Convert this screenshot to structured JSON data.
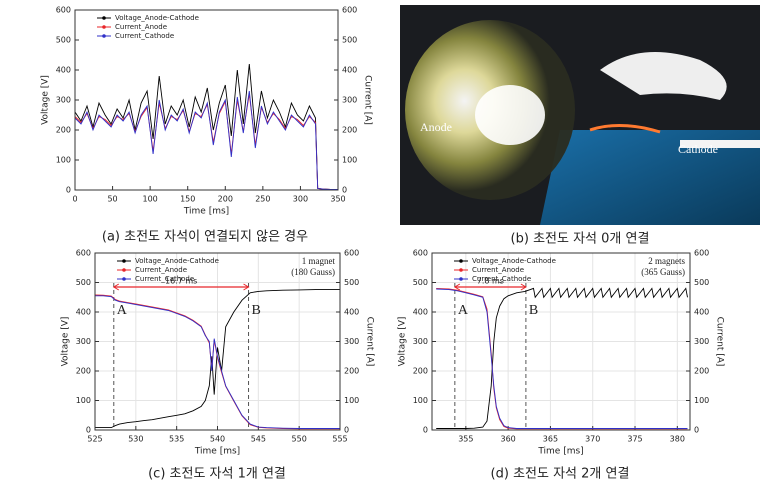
{
  "chart_data": [
    {
      "type": "line",
      "caption": "(a) 초전도 자석이 연결되지 않은 경우",
      "xlabel": "Time [ms]",
      "ylabel": "Voltage [V]",
      "y2label": "Current [A]",
      "xlim": [
        0,
        350
      ],
      "xticks": [
        0,
        50,
        100,
        150,
        200,
        250,
        300,
        350
      ],
      "ylim": [
        0,
        600
      ],
      "yticks": [
        0,
        100,
        200,
        300,
        400,
        500,
        600
      ],
      "y2lim": [
        0,
        600
      ],
      "y2ticks": [
        0,
        100,
        200,
        300,
        400,
        500,
        600
      ],
      "grid": false,
      "legend": "upper left",
      "x": [
        0,
        8,
        16,
        24,
        32,
        40,
        48,
        56,
        64,
        72,
        80,
        88,
        96,
        104,
        112,
        120,
        128,
        136,
        144,
        152,
        160,
        168,
        176,
        184,
        192,
        200,
        208,
        216,
        224,
        232,
        240,
        248,
        256,
        264,
        272,
        280,
        288,
        296,
        304,
        312,
        320,
        323,
        330,
        340,
        350
      ],
      "series": [
        {
          "name": "Voltage_Anode-Cathode",
          "color": "#000000",
          "values": [
            260,
            230,
            280,
            210,
            290,
            250,
            220,
            270,
            240,
            300,
            200,
            290,
            330,
            170,
            380,
            220,
            280,
            250,
            300,
            210,
            310,
            260,
            340,
            200,
            290,
            350,
            180,
            400,
            220,
            420,
            190,
            330,
            240,
            300,
            260,
            210,
            290,
            250,
            230,
            280,
            240,
            5,
            3,
            2,
            2
          ]
        },
        {
          "name": "Current_Anode",
          "color": "#e8262a",
          "axis": "y2",
          "values": [
            245,
            225,
            255,
            205,
            245,
            235,
            215,
            245,
            235,
            255,
            195,
            245,
            275,
            130,
            290,
            205,
            245,
            235,
            265,
            195,
            255,
            245,
            285,
            160,
            255,
            295,
            120,
            300,
            195,
            320,
            150,
            275,
            225,
            255,
            235,
            205,
            245,
            235,
            215,
            245,
            225,
            5,
            3,
            2,
            2
          ]
        },
        {
          "name": "Current_Cathode",
          "color": "#3030c8",
          "axis": "y2",
          "values": [
            240,
            220,
            260,
            200,
            250,
            230,
            210,
            250,
            230,
            260,
            190,
            250,
            280,
            120,
            300,
            200,
            250,
            230,
            270,
            190,
            260,
            240,
            290,
            150,
            260,
            300,
            110,
            310,
            190,
            330,
            140,
            280,
            220,
            260,
            230,
            200,
            250,
            230,
            210,
            250,
            220,
            5,
            3,
            2,
            2
          ]
        }
      ]
    },
    {
      "type": "line",
      "caption": "(c) 초전도 자석 1개 연결",
      "xlabel": "Time [ms]",
      "ylabel": "Voltage [V]",
      "y2label": "Current [A]",
      "xlim": [
        525,
        555
      ],
      "xticks": [
        525,
        530,
        535,
        540,
        545,
        550,
        555
      ],
      "ylim": [
        0,
        600
      ],
      "yticks": [
        0,
        100,
        200,
        300,
        400,
        500,
        600
      ],
      "y2lim": [
        0,
        600
      ],
      "y2ticks": [
        0,
        100,
        200,
        300,
        400,
        500,
        600
      ],
      "grid": true,
      "legend": "upper left",
      "note": [
        "1 magnet",
        "(180 Gauss)"
      ],
      "markers": [
        {
          "x": 527.3,
          "label": "A"
        },
        {
          "x": 543.8,
          "label": "B"
        }
      ],
      "interval": "16.7 ms",
      "x": [
        525,
        526,
        527,
        527.5,
        528,
        529,
        530,
        531,
        532,
        533,
        534,
        535,
        536,
        537,
        538,
        538.5,
        539,
        539.3,
        539.6,
        540,
        540.5,
        541,
        542,
        543,
        544,
        545,
        546,
        548,
        550,
        552,
        555
      ],
      "series": [
        {
          "name": "Voltage_Anode-Cathode",
          "color": "#000000",
          "values": [
            8,
            8,
            8,
            15,
            20,
            25,
            28,
            32,
            35,
            40,
            45,
            50,
            55,
            65,
            80,
            100,
            150,
            250,
            120,
            280,
            200,
            350,
            400,
            440,
            465,
            470,
            472,
            474,
            475,
            476,
            476
          ]
        },
        {
          "name": "Current_Anode",
          "color": "#e8262a",
          "axis": "y2",
          "values": [
            458,
            457,
            454,
            442,
            437,
            432,
            427,
            422,
            417,
            412,
            407,
            397,
            387,
            372,
            352,
            322,
            295,
            205,
            305,
            245,
            195,
            148,
            98,
            48,
            18,
            9,
            7,
            5,
            4,
            4,
            4
          ]
        },
        {
          "name": "Current_Cathode",
          "color": "#3030c8",
          "axis": "y2",
          "values": [
            455,
            455,
            452,
            440,
            435,
            430,
            425,
            420,
            415,
            410,
            405,
            395,
            385,
            370,
            350,
            320,
            300,
            200,
            310,
            250,
            200,
            150,
            100,
            50,
            20,
            10,
            8,
            6,
            5,
            5,
            5
          ]
        }
      ]
    },
    {
      "type": "line",
      "caption": "(d) 초전도 자석 2개 연결",
      "xlabel": "Time [ms]",
      "ylabel": "Voltage [V]",
      "y2label": "Current [A]",
      "xlim": [
        351,
        381.5
      ],
      "xticks": [
        355,
        360,
        365,
        370,
        375,
        380
      ],
      "ylim": [
        0,
        600
      ],
      "yticks": [
        0,
        100,
        200,
        300,
        400,
        500,
        600
      ],
      "y2lim": [
        0,
        600
      ],
      "y2ticks": [
        0,
        100,
        200,
        300,
        400,
        500,
        600
      ],
      "grid": true,
      "legend": "upper left",
      "note": [
        "2 magnets",
        "(365 Gauss)"
      ],
      "markers": [
        {
          "x": 353.7,
          "label": "A"
        },
        {
          "x": 362.1,
          "label": "B"
        }
      ],
      "interval": "7.8 ms",
      "x": [
        351.5,
        353,
        354,
        355,
        356,
        357,
        357.5,
        358,
        358.3,
        358.6,
        359,
        359.5,
        360,
        361,
        362,
        363,
        363.2,
        364,
        364.2,
        365,
        365.2,
        366,
        366.2,
        367,
        367.2,
        368,
        368.2,
        369,
        369.2,
        370,
        370.2,
        371,
        371.2,
        372,
        372.2,
        373,
        373.2,
        374,
        374.2,
        375,
        375.2,
        376,
        376.2,
        377,
        377.2,
        378,
        378.2,
        379,
        379.2,
        380,
        380.2,
        381,
        381.2
      ],
      "series": [
        {
          "name": "Voltage_Anode-Cathode",
          "color": "#000000",
          "values": [
            5,
            5,
            5,
            5,
            6,
            10,
            30,
            150,
            300,
            380,
            420,
            445,
            455,
            465,
            470,
            480,
            450,
            480,
            450,
            480,
            450,
            480,
            450,
            480,
            450,
            480,
            450,
            480,
            450,
            480,
            450,
            480,
            450,
            480,
            450,
            480,
            450,
            480,
            450,
            480,
            450,
            480,
            450,
            480,
            450,
            480,
            450,
            480,
            450,
            480,
            450,
            480,
            450
          ]
        },
        {
          "name": "Current_Anode",
          "color": "#e8262a",
          "axis": "y2",
          "values": [
            480,
            478,
            474,
            467,
            460,
            452,
            410,
            260,
            140,
            75,
            35,
            12,
            6,
            4,
            4,
            4,
            4,
            4,
            4,
            4,
            4,
            4,
            4,
            4,
            4,
            4,
            4,
            4,
            4,
            4,
            4,
            4,
            4,
            4,
            4,
            4,
            4,
            4,
            4,
            4,
            4,
            4,
            4,
            4,
            4,
            4,
            4,
            4,
            4,
            4,
            4,
            4,
            4
          ]
        },
        {
          "name": "Current_Cathode",
          "color": "#3030c8",
          "axis": "y2",
          "values": [
            478,
            476,
            472,
            465,
            458,
            450,
            400,
            250,
            150,
            80,
            40,
            15,
            8,
            5,
            5,
            5,
            5,
            5,
            5,
            5,
            5,
            5,
            5,
            5,
            5,
            5,
            5,
            5,
            5,
            5,
            5,
            5,
            5,
            5,
            5,
            5,
            5,
            5,
            5,
            5,
            5,
            5,
            5,
            5,
            5,
            5,
            5,
            5,
            5,
            5,
            5,
            5,
            5
          ]
        }
      ]
    }
  ],
  "photo": {
    "caption": "(b) 초전도 자석 0개 연결",
    "labels": [
      "Anode",
      "Cathode"
    ]
  }
}
